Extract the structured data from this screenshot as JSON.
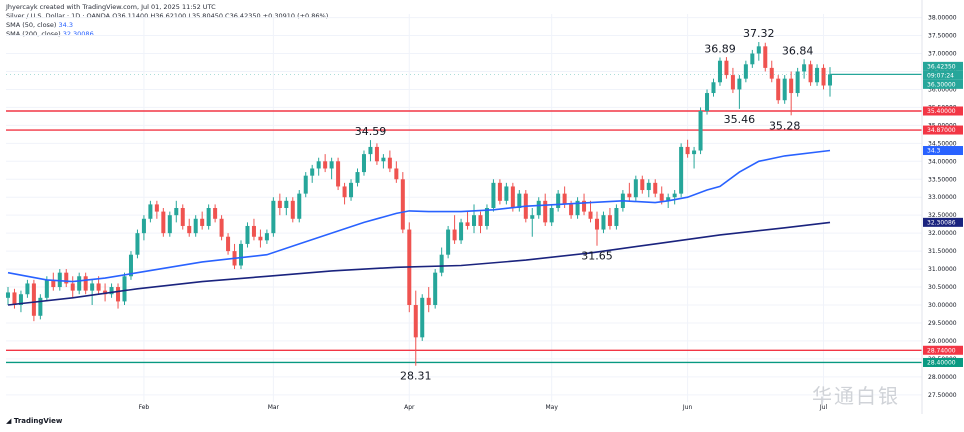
{
  "header": {
    "author_line": "Jhyercayk created with TradingView.com, Jul 01, 2025 11:52 UTC",
    "symbol_line": "Silver / U.S. Dollar · 1D · OANDA",
    "ohlc": "O36.11400 H36.62100 L35.80450 C36.42350 +0.30910 (+0.86%)",
    "sma50_label": "SMA (50, close)",
    "sma50_value": "34.3",
    "sma200_label": "SMA (200, close)",
    "sma200_value": "32.30086"
  },
  "footer": {
    "logo_text": "TradingView"
  },
  "watermark": {
    "text": "华通白银"
  },
  "colors": {
    "up": "#26a69a",
    "down": "#ef5350",
    "sma50": "#2962ff",
    "sma200": "#1a237e",
    "resistance": "#f23645",
    "support": "#089981"
  },
  "chart_data": {
    "type": "candlestick",
    "y_axis": {
      "ticks": [
        "38.00000",
        "37.50000",
        "37.00000",
        "36.50000",
        "36.00000",
        "35.50000",
        "35.00000",
        "34.50000",
        "34.00000",
        "33.50000",
        "33.00000",
        "32.50000",
        "32.00000",
        "31.50000",
        "31.00000",
        "30.50000",
        "30.00000",
        "29.50000",
        "29.00000",
        "28.50000",
        "28.00000",
        "27.50000"
      ],
      "range": [
        27.3,
        38.1
      ]
    },
    "x_axis": {
      "labels": [
        "Feb",
        "Mar",
        "Apr",
        "May",
        "Jun",
        "Jul"
      ],
      "label_bar_index": [
        21,
        41,
        62,
        84,
        105,
        126
      ]
    },
    "candles": [
      [
        30.2,
        30.5,
        30.0,
        30.35
      ],
      [
        30.35,
        30.45,
        29.9,
        30.0
      ],
      [
        30.0,
        30.4,
        29.8,
        30.3
      ],
      [
        30.3,
        30.7,
        30.2,
        30.6
      ],
      [
        30.6,
        30.7,
        29.55,
        29.7
      ],
      [
        29.7,
        30.3,
        29.6,
        30.2
      ],
      [
        30.2,
        30.8,
        30.1,
        30.7
      ],
      [
        30.7,
        30.9,
        30.4,
        30.5
      ],
      [
        30.5,
        31.0,
        30.4,
        30.9
      ],
      [
        30.9,
        31.0,
        30.5,
        30.6
      ],
      [
        30.6,
        30.8,
        30.2,
        30.4
      ],
      [
        30.4,
        30.9,
        30.3,
        30.8
      ],
      [
        30.8,
        30.9,
        30.3,
        30.4
      ],
      [
        30.4,
        30.7,
        30.0,
        30.6
      ],
      [
        30.6,
        30.8,
        30.3,
        30.4
      ],
      [
        30.4,
        30.6,
        30.1,
        30.3
      ],
      [
        30.3,
        30.6,
        30.2,
        30.5
      ],
      [
        30.5,
        30.6,
        29.9,
        30.1
      ],
      [
        30.1,
        30.9,
        30.0,
        30.8
      ],
      [
        30.8,
        31.5,
        30.7,
        31.4
      ],
      [
        31.4,
        32.1,
        31.3,
        32.0
      ],
      [
        32.0,
        32.5,
        31.8,
        32.4
      ],
      [
        32.4,
        32.9,
        32.3,
        32.8
      ],
      [
        32.8,
        32.9,
        32.4,
        32.6
      ],
      [
        32.6,
        32.7,
        31.9,
        32.0
      ],
      [
        32.0,
        32.6,
        31.9,
        32.5
      ],
      [
        32.5,
        32.9,
        32.3,
        32.7
      ],
      [
        32.7,
        32.8,
        32.1,
        32.2
      ],
      [
        32.2,
        32.4,
        31.9,
        32.0
      ],
      [
        32.0,
        32.5,
        31.9,
        32.4
      ],
      [
        32.4,
        32.6,
        32.1,
        32.2
      ],
      [
        32.2,
        32.8,
        32.1,
        32.7
      ],
      [
        32.7,
        32.8,
        32.3,
        32.4
      ],
      [
        32.4,
        32.5,
        31.8,
        31.9
      ],
      [
        31.9,
        32.0,
        31.4,
        31.5
      ],
      [
        31.5,
        31.7,
        31.0,
        31.1
      ],
      [
        31.1,
        31.8,
        31.0,
        31.7
      ],
      [
        31.7,
        32.3,
        31.6,
        32.2
      ],
      [
        32.2,
        32.4,
        31.8,
        31.9
      ],
      [
        31.9,
        32.1,
        31.6,
        31.8
      ],
      [
        31.8,
        32.1,
        31.7,
        32.0
      ],
      [
        32.0,
        33.0,
        31.9,
        32.9
      ],
      [
        32.9,
        33.1,
        32.5,
        32.7
      ],
      [
        32.7,
        33.0,
        32.5,
        32.9
      ],
      [
        32.9,
        33.0,
        32.3,
        32.4
      ],
      [
        32.4,
        33.2,
        32.3,
        33.1
      ],
      [
        33.1,
        33.7,
        33.0,
        33.6
      ],
      [
        33.6,
        33.9,
        33.4,
        33.8
      ],
      [
        33.8,
        34.1,
        33.6,
        34.0
      ],
      [
        34.0,
        34.2,
        33.7,
        33.8
      ],
      [
        33.8,
        34.1,
        33.5,
        34.0
      ],
      [
        34.0,
        34.1,
        33.2,
        33.3
      ],
      [
        33.3,
        33.4,
        32.8,
        33.0
      ],
      [
        33.0,
        33.5,
        32.9,
        33.4
      ],
      [
        33.4,
        33.8,
        33.3,
        33.7
      ],
      [
        33.7,
        34.3,
        33.6,
        34.2
      ],
      [
        34.2,
        34.59,
        34.0,
        34.4
      ],
      [
        34.4,
        34.5,
        33.9,
        34.0
      ],
      [
        34.0,
        34.2,
        33.8,
        34.1
      ],
      [
        34.1,
        34.3,
        33.7,
        33.8
      ],
      [
        33.8,
        34.0,
        33.4,
        33.5
      ],
      [
        33.5,
        33.7,
        32.0,
        32.1
      ],
      [
        32.1,
        32.3,
        29.8,
        30.0
      ],
      [
        30.0,
        30.4,
        28.31,
        29.1
      ],
      [
        29.1,
        30.3,
        29.0,
        30.2
      ],
      [
        30.2,
        30.5,
        29.8,
        30.0
      ],
      [
        30.0,
        31.0,
        29.9,
        30.9
      ],
      [
        30.9,
        31.6,
        30.8,
        31.4
      ],
      [
        31.4,
        32.2,
        31.3,
        32.1
      ],
      [
        32.1,
        32.5,
        31.7,
        31.8
      ],
      [
        31.8,
        32.4,
        31.7,
        32.3
      ],
      [
        32.3,
        32.6,
        32.1,
        32.2
      ],
      [
        32.2,
        32.8,
        32.0,
        32.5
      ],
      [
        32.5,
        32.6,
        32.0,
        32.2
      ],
      [
        32.2,
        32.8,
        32.1,
        32.7
      ],
      [
        32.7,
        33.5,
        32.6,
        33.4
      ],
      [
        33.4,
        33.5,
        32.8,
        32.9
      ],
      [
        32.9,
        33.4,
        32.8,
        33.3
      ],
      [
        33.3,
        33.4,
        32.6,
        32.7
      ],
      [
        32.7,
        33.2,
        32.6,
        33.1
      ],
      [
        33.1,
        33.2,
        32.3,
        32.4
      ],
      [
        32.4,
        32.7,
        31.9,
        32.5
      ],
      [
        32.5,
        33.0,
        32.4,
        32.9
      ],
      [
        32.9,
        33.1,
        32.2,
        32.3
      ],
      [
        32.3,
        32.8,
        32.2,
        32.7
      ],
      [
        32.7,
        33.2,
        32.6,
        33.1
      ],
      [
        33.1,
        33.3,
        32.7,
        32.8
      ],
      [
        32.8,
        32.9,
        32.4,
        32.5
      ],
      [
        32.5,
        33.0,
        32.4,
        32.9
      ],
      [
        32.9,
        33.1,
        32.5,
        32.6
      ],
      [
        32.6,
        32.9,
        32.3,
        32.4
      ],
      [
        32.4,
        32.6,
        31.65,
        32.1
      ],
      [
        32.1,
        32.6,
        32.0,
        32.5
      ],
      [
        32.5,
        32.7,
        32.1,
        32.2
      ],
      [
        32.2,
        32.8,
        32.1,
        32.7
      ],
      [
        32.7,
        33.2,
        32.6,
        33.1
      ],
      [
        33.1,
        33.4,
        32.9,
        33.0
      ],
      [
        33.0,
        33.6,
        32.9,
        33.5
      ],
      [
        33.5,
        33.6,
        33.1,
        33.2
      ],
      [
        33.2,
        33.5,
        33.0,
        33.4
      ],
      [
        33.4,
        33.5,
        33.0,
        33.1
      ],
      [
        33.1,
        33.3,
        32.8,
        32.9
      ],
      [
        32.9,
        33.1,
        32.7,
        33.0
      ],
      [
        33.0,
        33.2,
        32.8,
        33.1
      ],
      [
        33.1,
        34.5,
        33.0,
        34.4
      ],
      [
        34.4,
        34.6,
        34.1,
        34.2
      ],
      [
        34.2,
        34.4,
        33.8,
        34.3
      ],
      [
        34.3,
        35.5,
        34.2,
        35.4
      ],
      [
        35.4,
        36.0,
        35.3,
        35.9
      ],
      [
        35.9,
        36.3,
        35.8,
        36.2
      ],
      [
        36.2,
        36.89,
        36.1,
        36.8
      ],
      [
        36.8,
        36.9,
        36.3,
        36.4
      ],
      [
        36.4,
        36.6,
        35.9,
        36.0
      ],
      [
        36.0,
        36.4,
        35.46,
        36.3
      ],
      [
        36.3,
        36.8,
        36.2,
        36.7
      ],
      [
        36.7,
        37.1,
        36.6,
        37.0
      ],
      [
        37.0,
        37.32,
        36.8,
        37.2
      ],
      [
        37.2,
        37.3,
        36.5,
        36.6
      ],
      [
        36.6,
        36.8,
        36.2,
        36.3
      ],
      [
        36.3,
        36.4,
        35.6,
        35.7
      ],
      [
        35.7,
        36.4,
        35.6,
        36.3
      ],
      [
        36.3,
        36.5,
        35.28,
        35.9
      ],
      [
        35.9,
        36.6,
        35.8,
        36.5
      ],
      [
        36.5,
        36.84,
        36.3,
        36.7
      ],
      [
        36.7,
        36.8,
        36.1,
        36.2
      ],
      [
        36.2,
        36.7,
        36.1,
        36.6
      ],
      [
        36.6,
        36.7,
        36.0,
        36.11
      ],
      [
        36.11,
        36.62,
        35.8,
        36.42
      ]
    ],
    "sma50": [
      [
        0,
        30.9
      ],
      [
        3,
        30.8
      ],
      [
        6,
        30.7
      ],
      [
        10,
        30.65
      ],
      [
        15,
        30.75
      ],
      [
        20,
        30.9
      ],
      [
        25,
        31.05
      ],
      [
        30,
        31.2
      ],
      [
        35,
        31.3
      ],
      [
        40,
        31.4
      ],
      [
        45,
        31.7
      ],
      [
        50,
        32.0
      ],
      [
        55,
        32.3
      ],
      [
        60,
        32.55
      ],
      [
        62,
        32.62
      ],
      [
        65,
        32.6
      ],
      [
        70,
        32.6
      ],
      [
        75,
        32.65
      ],
      [
        80,
        32.75
      ],
      [
        85,
        32.8
      ],
      [
        90,
        32.85
      ],
      [
        95,
        32.9
      ],
      [
        100,
        32.85
      ],
      [
        102,
        32.9
      ],
      [
        105,
        33.0
      ],
      [
        108,
        33.2
      ],
      [
        110,
        33.3
      ],
      [
        113,
        33.7
      ],
      [
        116,
        34.0
      ],
      [
        120,
        34.15
      ],
      [
        127,
        34.3
      ]
    ],
    "sma200": [
      [
        0,
        30.0
      ],
      [
        10,
        30.2
      ],
      [
        20,
        30.45
      ],
      [
        30,
        30.65
      ],
      [
        40,
        30.8
      ],
      [
        50,
        30.95
      ],
      [
        60,
        31.05
      ],
      [
        70,
        31.1
      ],
      [
        80,
        31.25
      ],
      [
        90,
        31.45
      ],
      [
        100,
        31.7
      ],
      [
        110,
        31.95
      ],
      [
        120,
        32.15
      ],
      [
        127,
        32.3
      ]
    ],
    "levels": [
      {
        "price": 35.4,
        "label": "35.40000",
        "color": "#f23645"
      },
      {
        "price": 34.87,
        "label": "34.87000",
        "color": "#f23645"
      },
      {
        "price": 28.74,
        "label": "28.74000",
        "color": "#f23645"
      },
      {
        "price": 28.4,
        "label": "28.40000",
        "color": "#089981"
      }
    ],
    "price_tags": [
      {
        "value": "36.42350",
        "color": "#26a69a"
      },
      {
        "value": "09:07:24",
        "color": "#26a69a"
      },
      {
        "value": "36.30000",
        "color": "#26a69a"
      }
    ],
    "sma_tags": [
      {
        "value": "34.3",
        "price": 34.3,
        "color": "#2962ff"
      },
      {
        "value": "32.30086",
        "price": 32.30086,
        "color": "#1a237e"
      }
    ],
    "current_price": 36.42,
    "annotations": [
      {
        "text": "34.59",
        "bar": 56,
        "price": 34.59,
        "pos": "above"
      },
      {
        "text": "28.31",
        "bar": 63,
        "price": 28.31,
        "pos": "below"
      },
      {
        "text": "31.65",
        "bar": 91,
        "price": 31.65,
        "pos": "below"
      },
      {
        "text": "36.89",
        "bar": 110,
        "price": 36.89,
        "pos": "above"
      },
      {
        "text": "37.32",
        "bar": 116,
        "price": 37.32,
        "pos": "above"
      },
      {
        "text": "35.46",
        "bar": 113,
        "price": 35.46,
        "pos": "below"
      },
      {
        "text": "35.28",
        "bar": 120,
        "price": 35.28,
        "pos": "below"
      },
      {
        "text": "36.84",
        "bar": 122,
        "price": 36.84,
        "pos": "above"
      }
    ]
  }
}
